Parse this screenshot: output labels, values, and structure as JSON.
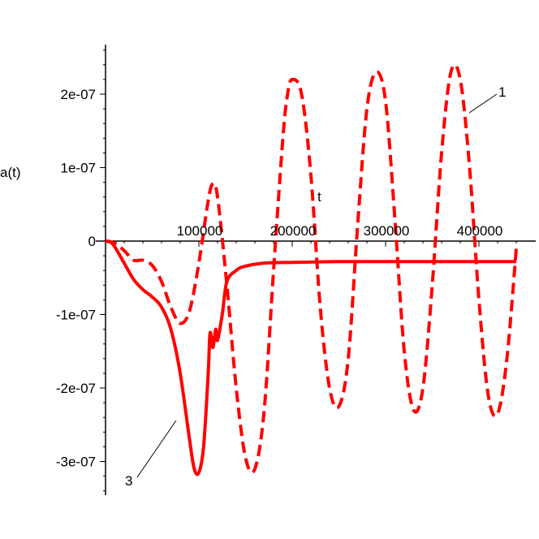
{
  "chart_data": {
    "type": "line",
    "xlabel": "t",
    "ylabel": "a(t)",
    "xlim": [
      0,
      440000
    ],
    "ylim": [
      -3.4e-07,
      2.6e-07
    ],
    "x_ticks": [
      {
        "value": 100000,
        "label": "100000"
      },
      {
        "value": 200000,
        "label": "200000"
      },
      {
        "value": 300000,
        "label": "300000"
      },
      {
        "value": 400000,
        "label": "400000"
      }
    ],
    "y_ticks": [
      {
        "value": 2e-07,
        "label": "2e-07"
      },
      {
        "value": 1e-07,
        "label": "1e-07"
      },
      {
        "value": 0,
        "label": "0"
      },
      {
        "value": -1e-07,
        "label": "-1e-07"
      },
      {
        "value": -2e-07,
        "label": "-2e-07"
      },
      {
        "value": -3e-07,
        "label": "-3e-07"
      }
    ],
    "color": "#ff0000",
    "series": [
      {
        "name": "1",
        "style": "dashed",
        "points": [
          [
            0,
            0
          ],
          [
            10000,
            -3e-09
          ],
          [
            20000,
            -1.3e-08
          ],
          [
            30000,
            -2.6e-08
          ],
          [
            40000,
            -2.6e-08
          ],
          [
            50000,
            -3.3e-08
          ],
          [
            60000,
            -5.5e-08
          ],
          [
            70000,
            -9e-08
          ],
          [
            80000,
            -1.12e-07
          ],
          [
            90000,
            -9.5e-08
          ],
          [
            100000,
            -3e-08
          ],
          [
            110000,
            5.5e-08
          ],
          [
            115000,
            7.8e-08
          ],
          [
            120000,
            6e-08
          ],
          [
            130000,
            -6e-08
          ],
          [
            140000,
            -2e-07
          ],
          [
            150000,
            -2.95e-07
          ],
          [
            160000,
            -3.1e-07
          ],
          [
            170000,
            -2.3e-07
          ],
          [
            180000,
            -4e-08
          ],
          [
            190000,
            1.4e-07
          ],
          [
            195000,
            2e-07
          ],
          [
            200000,
            2.2e-07
          ],
          [
            210000,
            2e-07
          ],
          [
            220000,
            9e-08
          ],
          [
            230000,
            -9e-08
          ],
          [
            240000,
            -2e-07
          ],
          [
            250000,
            -2.25e-07
          ],
          [
            260000,
            -1.6e-07
          ],
          [
            270000,
            2e-08
          ],
          [
            280000,
            1.8e-07
          ],
          [
            290000,
            2.3e-07
          ],
          [
            300000,
            1.9e-07
          ],
          [
            310000,
            3e-08
          ],
          [
            320000,
            -1.5e-07
          ],
          [
            330000,
            -2.3e-07
          ],
          [
            340000,
            -2e-07
          ],
          [
            350000,
            -6e-08
          ],
          [
            360000,
            1.2e-07
          ],
          [
            370000,
            2.3e-07
          ],
          [
            380000,
            2.2e-07
          ],
          [
            390000,
            1e-07
          ],
          [
            400000,
            -8e-08
          ],
          [
            410000,
            -2.1e-07
          ],
          [
            420000,
            -2.35e-07
          ],
          [
            430000,
            -1.6e-07
          ],
          [
            440000,
            -1e-08
          ]
        ]
      },
      {
        "name": "3",
        "style": "solid",
        "points": [
          [
            0,
            0
          ],
          [
            5000,
            -1e-09
          ],
          [
            10000,
            -8e-09
          ],
          [
            20000,
            -3e-08
          ],
          [
            30000,
            -5.2e-08
          ],
          [
            40000,
            -6.6e-08
          ],
          [
            50000,
            -7.6e-08
          ],
          [
            60000,
            -9e-08
          ],
          [
            70000,
            -1.2e-07
          ],
          [
            80000,
            -1.8e-07
          ],
          [
            90000,
            -2.7e-07
          ],
          [
            95000,
            -3.1e-07
          ],
          [
            100000,
            -3.15e-07
          ],
          [
            105000,
            -2.8e-07
          ],
          [
            110000,
            -1.8e-07
          ],
          [
            112000,
            -1.25e-07
          ],
          [
            115000,
            -1.45e-07
          ],
          [
            118000,
            -1.2e-07
          ],
          [
            120000,
            -1.35e-07
          ],
          [
            125000,
            -1e-07
          ],
          [
            130000,
            -5.5e-08
          ],
          [
            140000,
            -4e-08
          ],
          [
            150000,
            -3.4e-08
          ],
          [
            170000,
            -3e-08
          ],
          [
            200000,
            -2.9e-08
          ],
          [
            250000,
            -2.8e-08
          ],
          [
            300000,
            -2.8e-08
          ],
          [
            350000,
            -2.8e-08
          ],
          [
            400000,
            -2.8e-08
          ],
          [
            440000,
            -2.8e-08
          ]
        ]
      }
    ]
  }
}
